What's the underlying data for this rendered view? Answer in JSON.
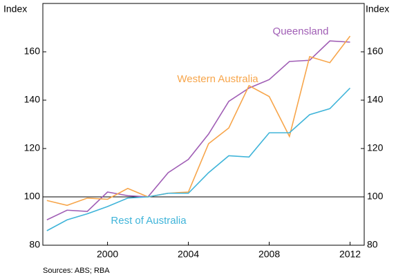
{
  "chart_data": {
    "type": "line",
    "y_label_left": "Index",
    "y_label_right": "Index",
    "source": "Sources: ABS; RBA",
    "x": [
      1997,
      1998,
      1999,
      2000,
      2001,
      2002,
      2003,
      2004,
      2005,
      2006,
      2007,
      2008,
      2009,
      2010,
      2011,
      2012
    ],
    "series": [
      {
        "name": "Queensland",
        "color": "#a05eb5",
        "values": [
          90.5,
          94.5,
          94,
          102,
          100.5,
          100,
          110,
          115.5,
          126,
          139.5,
          145,
          148.5,
          156,
          156.5,
          164.5,
          164
        ]
      },
      {
        "name": "Western Australia",
        "color": "#f7a54a",
        "values": [
          98.5,
          96.5,
          99.5,
          99,
          103.5,
          100,
          101.5,
          102,
          122,
          128.5,
          146,
          141.5,
          125,
          158,
          155.5,
          166.5
        ]
      },
      {
        "name": "Rest of Australia",
        "color": "#3fb4d9",
        "values": [
          86,
          90.5,
          93,
          96,
          99.5,
          100,
          101.5,
          101.5,
          110,
          117,
          116.5,
          126.5,
          126.5,
          134,
          136.5,
          145
        ]
      }
    ],
    "xlim": [
      1996.8,
      2012.7
    ],
    "xticks": [
      2000,
      2004,
      2008,
      2012
    ],
    "ylim": [
      80,
      180
    ],
    "yticks": [
      80,
      100,
      120,
      140,
      160
    ],
    "y2lim": [
      80,
      180
    ],
    "y2ticks": [
      80,
      100,
      120,
      140,
      160
    ],
    "reference_line": 100,
    "grid": false
  }
}
